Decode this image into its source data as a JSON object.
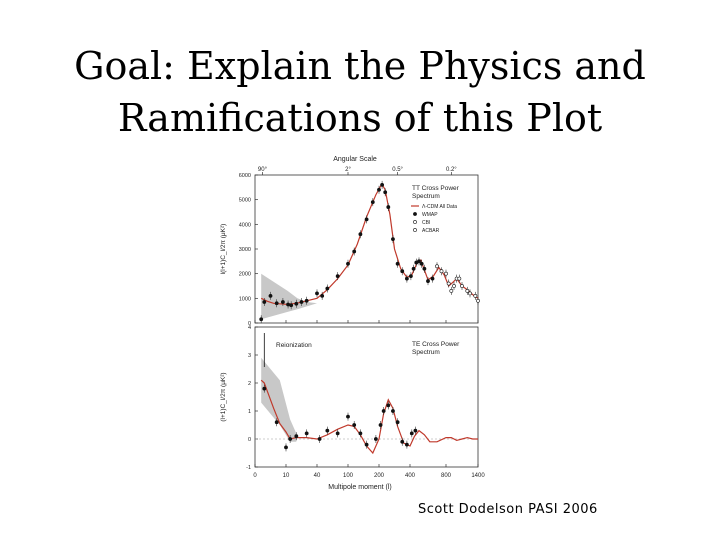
{
  "slide": {
    "title_line1": "Goal: Explain the Physics and",
    "title_line2": "Ramifications of this Plot",
    "footer": "Scott Dodelson PASI 2006"
  },
  "chart_data": [
    {
      "type": "scatter",
      "title": "TT Cross Power Spectrum",
      "title_line1": "TT Cross Power",
      "title_line2": "Spectrum",
      "top_axis_label": "Angular Scale",
      "top_ticks": [
        {
          "l": 2.4,
          "label": "90°"
        },
        {
          "l": 100,
          "label": "2°"
        },
        {
          "l": 320,
          "label": "0.5°"
        },
        {
          "l": 900,
          "label": "0.2°"
        }
      ],
      "ylabel": "l(l+1)C_l/2π (μK²)",
      "ylim": [
        0,
        6000
      ],
      "yticks": [
        0,
        1000,
        2000,
        3000,
        4000,
        5000,
        6000
      ],
      "legend": [
        {
          "label": "Λ-CDM All Data",
          "style": "line"
        },
        {
          "label": "WMAP",
          "style": "filled"
        },
        {
          "label": "CBI",
          "style": "open"
        },
        {
          "label": "ACBAR",
          "style": "open"
        }
      ],
      "model_curve": [
        [
          2,
          1000
        ],
        [
          4,
          880
        ],
        [
          6,
          800
        ],
        [
          10,
          760
        ],
        [
          20,
          800
        ],
        [
          40,
          1000
        ],
        [
          60,
          1350
        ],
        [
          80,
          1800
        ],
        [
          100,
          2350
        ],
        [
          130,
          3200
        ],
        [
          160,
          4300
        ],
        [
          190,
          5200
        ],
        [
          210,
          5550
        ],
        [
          220,
          5620
        ],
        [
          240,
          5400
        ],
        [
          270,
          4400
        ],
        [
          300,
          3000
        ],
        [
          340,
          2200
        ],
        [
          380,
          1850
        ],
        [
          420,
          1950
        ],
        [
          480,
          2450
        ],
        [
          520,
          2550
        ],
        [
          560,
          2150
        ],
        [
          600,
          1750
        ],
        [
          660,
          1900
        ],
        [
          720,
          2250
        ],
        [
          780,
          1950
        ],
        [
          850,
          1500
        ],
        [
          930,
          1650
        ],
        [
          1000,
          1800
        ],
        [
          1100,
          1500
        ],
        [
          1200,
          1350
        ],
        [
          1300,
          1150
        ],
        [
          1400,
          1000
        ]
      ],
      "model_band": {
        "l_min": 2,
        "l_max": 40,
        "upper": [
          2000,
          1300,
          1000,
          850,
          800
        ],
        "lower": [
          150,
          450,
          560,
          680,
          800
        ]
      },
      "series": [
        {
          "name": "WMAP",
          "style": "filled",
          "points": [
            [
              2,
              150
            ],
            [
              3,
              850
            ],
            [
              5,
              1100
            ],
            [
              7,
              800
            ],
            [
              9,
              850
            ],
            [
              12,
              750
            ],
            [
              15,
              720
            ],
            [
              20,
              780
            ],
            [
              25,
              850
            ],
            [
              30,
              900
            ],
            [
              40,
              1200
            ],
            [
              50,
              1100
            ],
            [
              60,
              1400
            ],
            [
              80,
              1900
            ],
            [
              100,
              2400
            ],
            [
              120,
              2900
            ],
            [
              140,
              3600
            ],
            [
              160,
              4200
            ],
            [
              180,
              4900
            ],
            [
              200,
              5400
            ],
            [
              220,
              5600
            ],
            [
              240,
              5300
            ],
            [
              260,
              4700
            ],
            [
              290,
              3400
            ],
            [
              320,
              2400
            ],
            [
              350,
              2100
            ],
            [
              380,
              1800
            ],
            [
              410,
              1900
            ],
            [
              440,
              2200
            ],
            [
              470,
              2450
            ],
            [
              500,
              2500
            ],
            [
              530,
              2400
            ],
            [
              560,
              2200
            ],
            [
              600,
              1700
            ],
            [
              650,
              1800
            ]
          ]
        },
        {
          "name": "CBI",
          "style": "open",
          "points": [
            [
              700,
              2300
            ],
            [
              800,
              2000
            ],
            [
              900,
              1300
            ],
            [
              1000,
              1800
            ],
            [
              1100,
              1500
            ],
            [
              1250,
              1200
            ],
            [
              1400,
              900
            ]
          ]
        },
        {
          "name": "ACBAR",
          "style": "open",
          "points": [
            [
              750,
              2100
            ],
            [
              850,
              1600
            ],
            [
              950,
              1500
            ],
            [
              1050,
              1800
            ],
            [
              1200,
              1300
            ],
            [
              1350,
              1100
            ]
          ]
        }
      ]
    },
    {
      "type": "scatter",
      "title": "TE Cross Power Spectrum",
      "title_line1": "TE Cross Power",
      "title_line2": "Spectrum",
      "annotation": "Reionization",
      "ylabel": "(l+1)C_l/2π (μK²)",
      "xlabel": "Multipole moment (l)",
      "ylim": [
        -1,
        4
      ],
      "yticks": [
        -1,
        0,
        1,
        2,
        3,
        4
      ],
      "xticks": [
        {
          "l": 0,
          "label": "0"
        },
        {
          "l": 10,
          "label": "10"
        },
        {
          "l": 40,
          "label": "40"
        },
        {
          "l": 100,
          "label": "100"
        },
        {
          "l": 200,
          "label": "200"
        },
        {
          "l": 400,
          "label": "400"
        },
        {
          "l": 800,
          "label": "800"
        },
        {
          "l": 1400,
          "label": "1400"
        }
      ],
      "model_curve": [
        [
          2,
          2.1
        ],
        [
          3,
          2.0
        ],
        [
          4,
          1.7
        ],
        [
          6,
          1.1
        ],
        [
          8,
          0.55
        ],
        [
          10,
          0.25
        ],
        [
          14,
          0.0
        ],
        [
          20,
          0.05
        ],
        [
          30,
          0.05
        ],
        [
          40,
          0.0
        ],
        [
          60,
          0.15
        ],
        [
          80,
          0.35
        ],
        [
          100,
          0.5
        ],
        [
          120,
          0.45
        ],
        [
          140,
          0.15
        ],
        [
          160,
          -0.25
        ],
        [
          180,
          -0.5
        ],
        [
          200,
          0.0
        ],
        [
          230,
          0.9
        ],
        [
          260,
          1.4
        ],
        [
          290,
          1.1
        ],
        [
          320,
          0.45
        ],
        [
          360,
          -0.15
        ],
        [
          400,
          -0.25
        ],
        [
          450,
          0.1
        ],
        [
          500,
          0.3
        ],
        [
          560,
          0.15
        ],
        [
          620,
          -0.1
        ],
        [
          700,
          -0.1
        ],
        [
          800,
          0.05
        ],
        [
          900,
          0.05
        ],
        [
          1000,
          -0.05
        ],
        [
          1100,
          0.0
        ],
        [
          1200,
          0.05
        ],
        [
          1300,
          0.0
        ],
        [
          1400,
          0.0
        ]
      ],
      "model_band": {
        "l_min": 2,
        "l_max": 20,
        "upper": [
          2.9,
          2.1,
          0.7,
          0.2
        ],
        "lower": [
          1.3,
          0.5,
          -0.1,
          -0.1
        ]
      },
      "series": [
        {
          "name": "WMAP",
          "style": "filled",
          "points": [
            [
              3,
              1.8
            ],
            [
              7,
              0.6
            ],
            [
              10,
              -0.3
            ],
            [
              14,
              0.0
            ],
            [
              20,
              0.1
            ],
            [
              30,
              0.2
            ],
            [
              45,
              0.0
            ],
            [
              60,
              0.3
            ],
            [
              80,
              0.2
            ],
            [
              100,
              0.8
            ],
            [
              120,
              0.5
            ],
            [
              140,
              0.2
            ],
            [
              160,
              -0.2
            ],
            [
              190,
              0.0
            ],
            [
              210,
              0.5
            ],
            [
              230,
              1.0
            ],
            [
              260,
              1.2
            ],
            [
              290,
              1.0
            ],
            [
              320,
              0.6
            ],
            [
              350,
              -0.1
            ],
            [
              380,
              -0.2
            ],
            [
              420,
              0.2
            ],
            [
              460,
              0.3
            ]
          ]
        }
      ]
    }
  ]
}
